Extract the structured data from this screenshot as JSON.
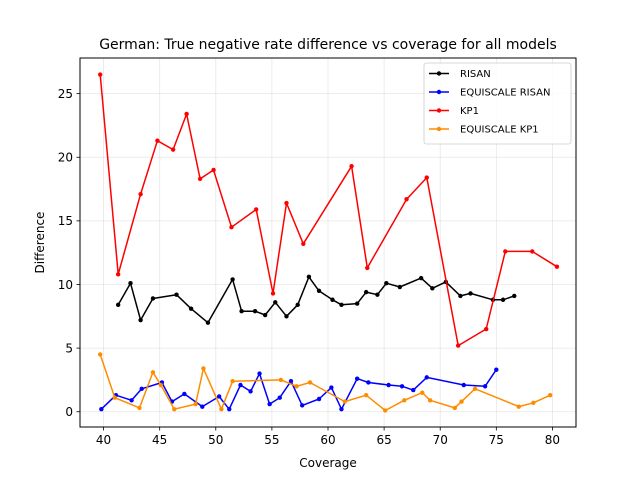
{
  "chart_data": {
    "type": "line",
    "title": "German: True negative rate difference vs coverage for all models",
    "xlabel": "Coverage",
    "ylabel": "Difference",
    "xlim": [
      37.9,
      82.1
    ],
    "ylim": [
      -1.2,
      27.8
    ],
    "xticks": [
      40,
      45,
      50,
      55,
      60,
      65,
      70,
      75,
      80
    ],
    "yticks": [
      0,
      5,
      10,
      15,
      20,
      25
    ],
    "grid": true,
    "legend_position": "top-right",
    "series": [
      {
        "name": "RISAN",
        "color": "#000000",
        "points": [
          [
            41.3,
            8.4
          ],
          [
            42.4,
            10.1
          ],
          [
            43.3,
            7.2
          ],
          [
            44.4,
            8.9
          ],
          [
            46.5,
            9.2
          ],
          [
            47.8,
            8.1
          ],
          [
            49.3,
            7.0
          ],
          [
            51.5,
            10.4
          ],
          [
            52.3,
            7.9
          ],
          [
            53.5,
            7.9
          ],
          [
            54.4,
            7.6
          ],
          [
            55.3,
            8.6
          ],
          [
            56.3,
            7.5
          ],
          [
            57.3,
            8.4
          ],
          [
            58.3,
            10.6
          ],
          [
            59.2,
            9.5
          ],
          [
            60.4,
            8.8
          ],
          [
            61.2,
            8.4
          ],
          [
            62.6,
            8.5
          ],
          [
            63.4,
            9.4
          ],
          [
            64.4,
            9.2
          ],
          [
            65.2,
            10.1
          ],
          [
            66.4,
            9.8
          ],
          [
            68.3,
            10.5
          ],
          [
            69.3,
            9.7
          ],
          [
            70.5,
            10.2
          ],
          [
            71.8,
            9.1
          ],
          [
            72.7,
            9.3
          ],
          [
            74.7,
            8.8
          ],
          [
            75.6,
            8.8
          ],
          [
            76.6,
            9.1
          ]
        ]
      },
      {
        "name": "EQUISCALE RISAN",
        "color": "#0000ff",
        "points": [
          [
            39.8,
            0.2
          ],
          [
            41.1,
            1.3
          ],
          [
            42.5,
            0.9
          ],
          [
            43.4,
            1.8
          ],
          [
            45.2,
            2.3
          ],
          [
            46.1,
            0.8
          ],
          [
            47.2,
            1.4
          ],
          [
            48.8,
            0.4
          ],
          [
            50.3,
            1.2
          ],
          [
            51.2,
            0.2
          ],
          [
            52.2,
            2.1
          ],
          [
            53.1,
            1.6
          ],
          [
            53.9,
            3.0
          ],
          [
            54.8,
            0.6
          ],
          [
            55.7,
            1.1
          ],
          [
            56.7,
            2.4
          ],
          [
            57.7,
            0.5
          ],
          [
            59.2,
            1.0
          ],
          [
            60.3,
            1.9
          ],
          [
            61.2,
            0.2
          ],
          [
            62.6,
            2.6
          ],
          [
            63.6,
            2.3
          ],
          [
            65.4,
            2.1
          ],
          [
            66.6,
            2.0
          ],
          [
            67.6,
            1.7
          ],
          [
            68.8,
            2.7
          ],
          [
            72.1,
            2.1
          ],
          [
            74.0,
            2.0
          ],
          [
            75.0,
            3.3
          ]
        ]
      },
      {
        "name": "KP1",
        "color": "#ff0000",
        "points": [
          [
            39.7,
            26.5
          ],
          [
            41.3,
            10.8
          ],
          [
            43.3,
            17.1
          ],
          [
            44.8,
            21.3
          ],
          [
            46.2,
            20.6
          ],
          [
            47.4,
            23.4
          ],
          [
            48.6,
            18.3
          ],
          [
            49.8,
            19.0
          ],
          [
            51.4,
            14.5
          ],
          [
            53.6,
            15.9
          ],
          [
            55.1,
            9.3
          ],
          [
            56.3,
            16.4
          ],
          [
            57.8,
            13.2
          ],
          [
            62.1,
            19.3
          ],
          [
            63.5,
            11.3
          ],
          [
            67.0,
            16.7
          ],
          [
            68.8,
            18.4
          ],
          [
            71.6,
            5.2
          ],
          [
            74.1,
            6.5
          ],
          [
            75.8,
            12.6
          ],
          [
            78.2,
            12.6
          ],
          [
            80.4,
            11.4
          ]
        ]
      },
      {
        "name": "EQUISCALE KP1",
        "color": "#ff8c00",
        "points": [
          [
            39.7,
            4.5
          ],
          [
            41.0,
            1.1
          ],
          [
            43.2,
            0.3
          ],
          [
            44.4,
            3.1
          ],
          [
            45.1,
            2.1
          ],
          [
            46.3,
            0.2
          ],
          [
            48.2,
            0.6
          ],
          [
            48.9,
            3.4
          ],
          [
            50.5,
            0.2
          ],
          [
            51.5,
            2.4
          ],
          [
            55.8,
            2.5
          ],
          [
            57.2,
            2.0
          ],
          [
            58.4,
            2.3
          ],
          [
            61.5,
            0.8
          ],
          [
            63.4,
            1.3
          ],
          [
            65.1,
            0.1
          ],
          [
            66.8,
            0.9
          ],
          [
            68.4,
            1.5
          ],
          [
            69.1,
            0.9
          ],
          [
            71.3,
            0.3
          ],
          [
            71.9,
            0.8
          ],
          [
            73.1,
            1.8
          ],
          [
            77.0,
            0.4
          ],
          [
            78.3,
            0.7
          ],
          [
            79.8,
            1.3
          ]
        ]
      }
    ]
  }
}
